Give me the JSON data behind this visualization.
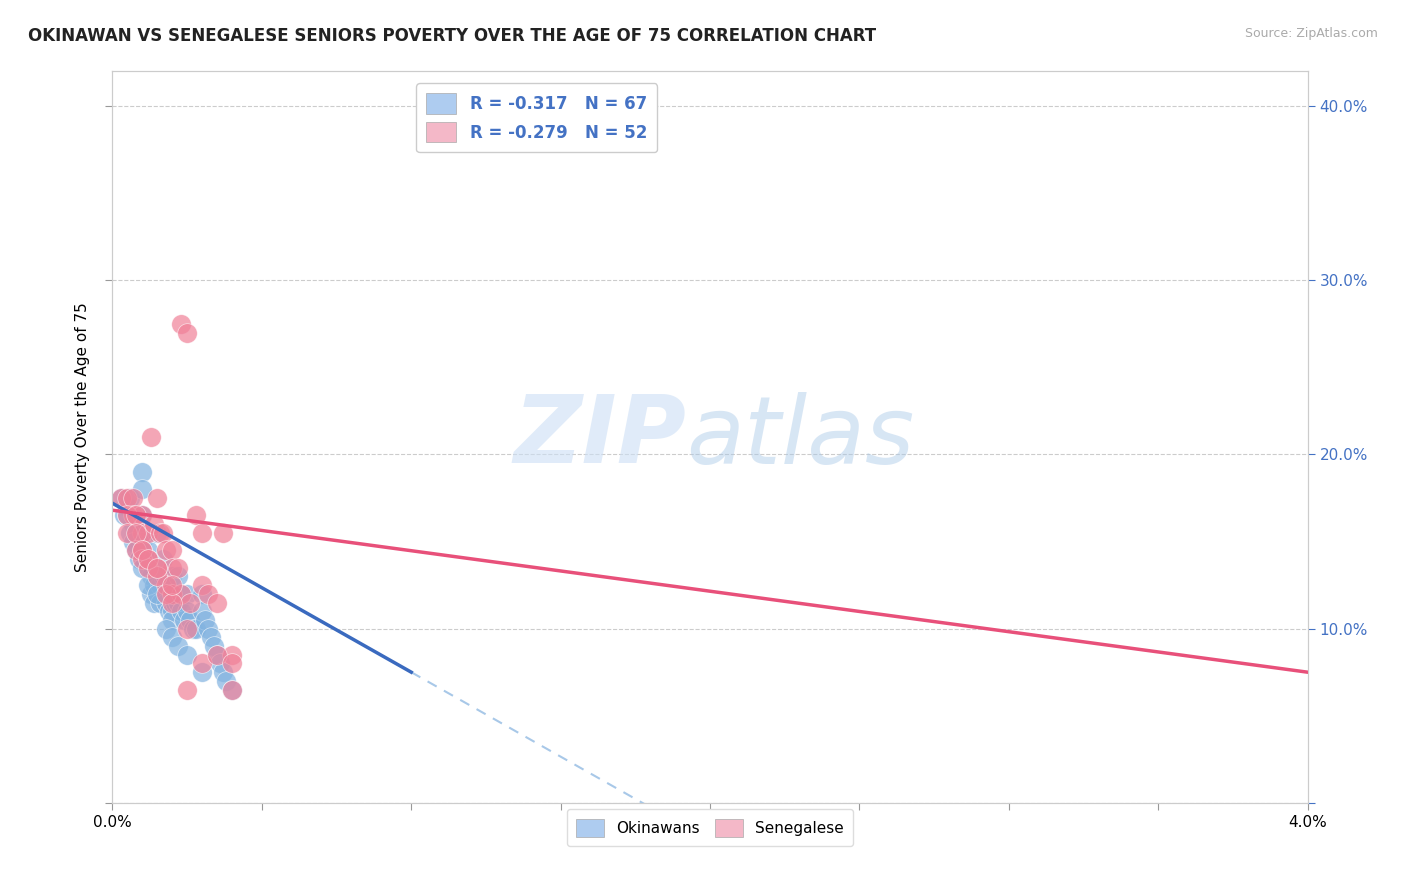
{
  "title": "OKINAWAN VS SENEGALESE SENIORS POVERTY OVER THE AGE OF 75 CORRELATION CHART",
  "source": "Source: ZipAtlas.com",
  "ylabel": "Seniors Poverty Over the Age of 75",
  "xlim": [
    0.0,
    0.04
  ],
  "ylim": [
    0.0,
    0.42
  ],
  "okinawan_color": "#82b3e0",
  "senegalese_color": "#f08098",
  "blue_line_color": "#3a6abf",
  "pink_line_color": "#e8507a",
  "dashed_line_color": "#a8c8e8",
  "watermark_zip": "ZIP",
  "watermark_atlas": "atlas",
  "grid_color": "#cccccc",
  "background_color": "#ffffff",
  "right_tick_color": "#4472c4",
  "legend1_label": "R = -0.317   N = 67",
  "legend2_label": "R = -0.279   N = 52",
  "legend1_color": "#aeccf0",
  "legend2_color": "#f4b8c8",
  "bottom_legend1": "Okinawans",
  "bottom_legend2": "Senegalese",
  "ok_line_x0": 0.0,
  "ok_line_x1": 0.01,
  "ok_line_y0": 0.172,
  "ok_line_y1": 0.075,
  "dash_line_x0": 0.01,
  "dash_line_x1": 0.04,
  "sn_line_x0": 0.0,
  "sn_line_x1": 0.04,
  "sn_line_y0": 0.168,
  "sn_line_y1": 0.075,
  "okinawan_x": [
    0.0005,
    0.0006,
    0.0007,
    0.0008,
    0.0009,
    0.001,
    0.001,
    0.001,
    0.001,
    0.001,
    0.0011,
    0.0012,
    0.0012,
    0.0013,
    0.0013,
    0.0014,
    0.0014,
    0.0015,
    0.0015,
    0.0016,
    0.0016,
    0.0017,
    0.0017,
    0.0018,
    0.0018,
    0.0019,
    0.002,
    0.002,
    0.002,
    0.002,
    0.0021,
    0.0022,
    0.0022,
    0.0023,
    0.0023,
    0.0024,
    0.0025,
    0.0025,
    0.0026,
    0.0027,
    0.0028,
    0.003,
    0.003,
    0.0031,
    0.0032,
    0.0033,
    0.0034,
    0.0035,
    0.0036,
    0.0037,
    0.0038,
    0.004,
    0.0003,
    0.0004,
    0.0005,
    0.0006,
    0.0007,
    0.0008,
    0.0009,
    0.001,
    0.0012,
    0.0015,
    0.0018,
    0.002,
    0.0022,
    0.0025,
    0.003
  ],
  "okinawan_y": [
    0.17,
    0.175,
    0.16,
    0.155,
    0.15,
    0.19,
    0.18,
    0.165,
    0.155,
    0.15,
    0.14,
    0.145,
    0.135,
    0.13,
    0.12,
    0.125,
    0.115,
    0.155,
    0.13,
    0.125,
    0.115,
    0.14,
    0.13,
    0.125,
    0.115,
    0.11,
    0.13,
    0.12,
    0.11,
    0.105,
    0.115,
    0.13,
    0.115,
    0.12,
    0.11,
    0.105,
    0.12,
    0.11,
    0.105,
    0.1,
    0.1,
    0.12,
    0.11,
    0.105,
    0.1,
    0.095,
    0.09,
    0.085,
    0.08,
    0.075,
    0.07,
    0.065,
    0.175,
    0.165,
    0.165,
    0.155,
    0.15,
    0.145,
    0.14,
    0.135,
    0.125,
    0.12,
    0.1,
    0.095,
    0.09,
    0.085,
    0.075
  ],
  "senegalese_x": [
    0.0003,
    0.0005,
    0.0007,
    0.0007,
    0.001,
    0.001,
    0.0012,
    0.0013,
    0.0014,
    0.0015,
    0.0016,
    0.0017,
    0.0018,
    0.002,
    0.002,
    0.0022,
    0.0023,
    0.0025,
    0.0028,
    0.003,
    0.0005,
    0.0008,
    0.001,
    0.0012,
    0.0015,
    0.0018,
    0.002,
    0.0023,
    0.0026,
    0.003,
    0.0032,
    0.0035,
    0.0037,
    0.004,
    0.0005,
    0.0008,
    0.001,
    0.0012,
    0.0015,
    0.0018,
    0.002,
    0.0025,
    0.003,
    0.0035,
    0.004,
    0.0008,
    0.001,
    0.0012,
    0.0015,
    0.002,
    0.0025,
    0.004
  ],
  "senegalese_y": [
    0.175,
    0.175,
    0.175,
    0.165,
    0.165,
    0.155,
    0.155,
    0.21,
    0.16,
    0.175,
    0.155,
    0.155,
    0.145,
    0.145,
    0.135,
    0.135,
    0.275,
    0.27,
    0.165,
    0.155,
    0.165,
    0.165,
    0.145,
    0.14,
    0.135,
    0.125,
    0.12,
    0.12,
    0.115,
    0.125,
    0.12,
    0.115,
    0.155,
    0.085,
    0.155,
    0.145,
    0.14,
    0.135,
    0.13,
    0.12,
    0.115,
    0.1,
    0.08,
    0.085,
    0.08,
    0.155,
    0.145,
    0.14,
    0.135,
    0.125,
    0.065,
    0.065
  ]
}
